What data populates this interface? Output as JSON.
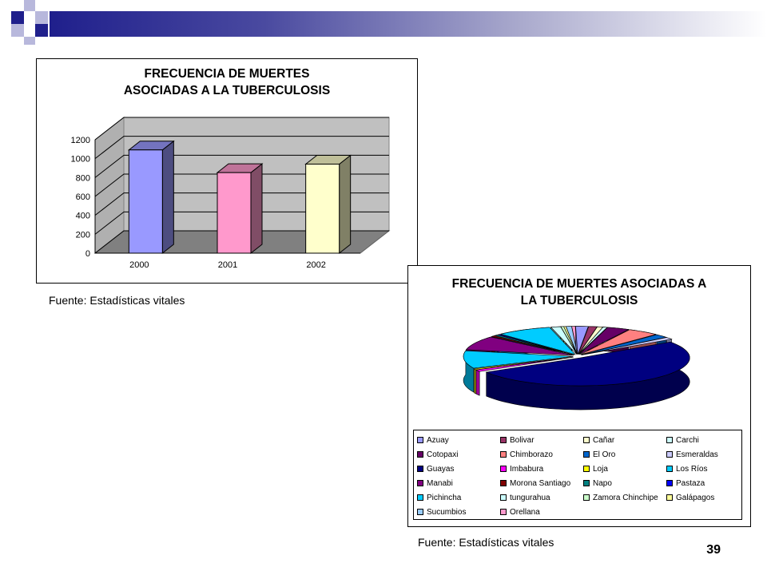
{
  "colors": {
    "accent_dark": "#1f1f8c",
    "accent_light": "#a8a8cc"
  },
  "page_number": "39",
  "chart_data": [
    {
      "type": "bar",
      "title": "FRECUENCIA DE MUERTES ASOCIADAS A LA TUBERCULOSIS",
      "categories": [
        "2000",
        "2001",
        "2002"
      ],
      "values": [
        1160,
        920,
        1010
      ],
      "colors": [
        "#9999ff",
        "#ff99cc",
        "#ffffcc"
      ],
      "yticks": [
        "0",
        "200",
        "400",
        "600",
        "800",
        "1000",
        "1200"
      ],
      "ylim": [
        0,
        1200
      ],
      "grid": true,
      "style": "3d",
      "source": "Fuente: Estadísticas vitales"
    },
    {
      "type": "pie",
      "title": "FRECUENCIA DE MUERTES ASOCIADAS A LA TUBERCULOSIS",
      "style": "3d",
      "legend_position": "bottom",
      "slices": [
        {
          "label": "Azuay",
          "value": 1.8,
          "color": "#9999ff"
        },
        {
          "label": "Bolivar",
          "value": 1.2,
          "color": "#993366"
        },
        {
          "label": "Cañar",
          "value": 0.8,
          "color": "#ffffcc"
        },
        {
          "label": "Carchi",
          "value": 0.6,
          "color": "#ccffff"
        },
        {
          "label": "Cotopaxi",
          "value": 3.2,
          "color": "#660066"
        },
        {
          "label": "Chimborazo",
          "value": 4.6,
          "color": "#ff8080"
        },
        {
          "label": "El Oro",
          "value": 2.0,
          "color": "#0066cc"
        },
        {
          "label": "Esmeraldas",
          "value": 1.2,
          "color": "#ccccff"
        },
        {
          "label": "Guayas",
          "value": 50.0,
          "color": "#000080"
        },
        {
          "label": "Imbabura",
          "value": 1.0,
          "color": "#ff00ff"
        },
        {
          "label": "Loja",
          "value": 0.6,
          "color": "#ffff00"
        },
        {
          "label": "Los Ríos",
          "value": 10.0,
          "color": "#00ccff"
        },
        {
          "label": "Manabi",
          "value": 8.0,
          "color": "#800080"
        },
        {
          "label": "Morona Santiago",
          "value": 0.6,
          "color": "#800000"
        },
        {
          "label": "Napo",
          "value": 0.6,
          "color": "#008080"
        },
        {
          "label": "Pastaza",
          "value": 0.4,
          "color": "#0000ff"
        },
        {
          "label": "Pichincha",
          "value": 8.0,
          "color": "#00ccff"
        },
        {
          "label": "tungurahua",
          "value": 1.4,
          "color": "#ccffff"
        },
        {
          "label": "Zamora Chinchipe",
          "value": 0.4,
          "color": "#ccffcc"
        },
        {
          "label": "Galápagos",
          "value": 0.3,
          "color": "#ffff99"
        },
        {
          "label": "Sucumbios",
          "value": 0.8,
          "color": "#99ccff"
        },
        {
          "label": "Orellana",
          "value": 0.5,
          "color": "#ff99cc"
        }
      ],
      "source": "Fuente: Estadísticas vitales"
    }
  ]
}
